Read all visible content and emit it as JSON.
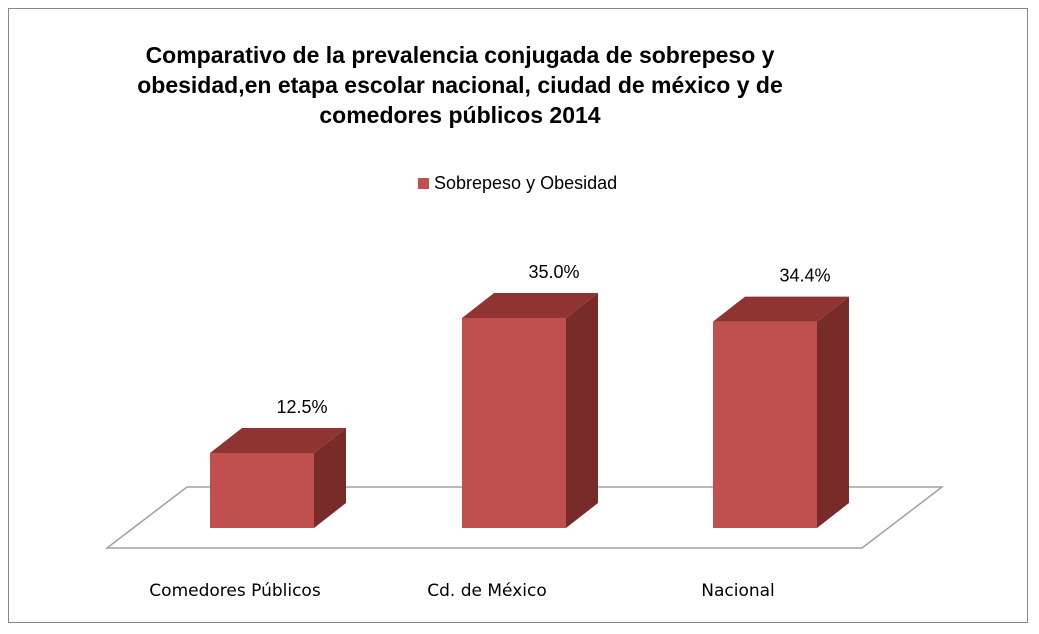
{
  "chart_data": {
    "type": "bar3d",
    "title": "Comparativo de la prevalencia conjugada de sobrepeso y\nobesidad,en etapa escolar  nacional, ciudad de méxico y de\ncomedores públicos 2014",
    "categories": [
      "Comedores Públicos",
      "Cd. de México",
      "Nacional"
    ],
    "series": [
      {
        "name": "Sobrepeso y Obesidad",
        "color": "#c0504d",
        "values": [
          12.5,
          35.0,
          34.4
        ],
        "value_labels": [
          "12.5%",
          "35.0%",
          "34.4%"
        ]
      }
    ],
    "legend": "top"
  }
}
